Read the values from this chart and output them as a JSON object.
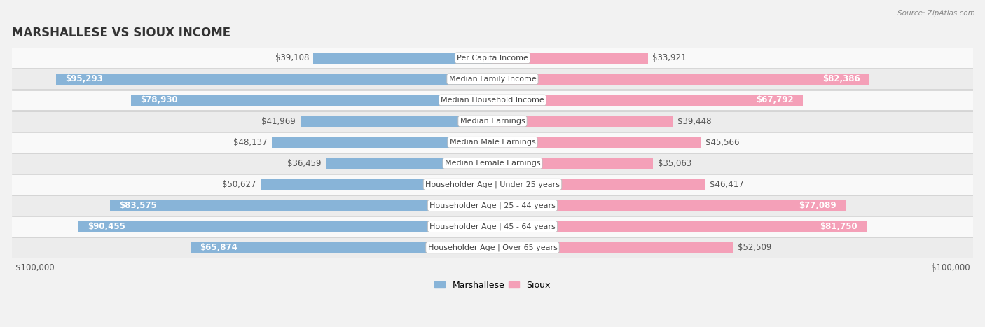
{
  "title": "MARSHALLESE VS SIOUX INCOME",
  "source": "Source: ZipAtlas.com",
  "categories": [
    "Per Capita Income",
    "Median Family Income",
    "Median Household Income",
    "Median Earnings",
    "Median Male Earnings",
    "Median Female Earnings",
    "Householder Age | Under 25 years",
    "Householder Age | 25 - 44 years",
    "Householder Age | 45 - 64 years",
    "Householder Age | Over 65 years"
  ],
  "marshallese_values": [
    39108,
    95293,
    78930,
    41969,
    48137,
    36459,
    50627,
    83575,
    90455,
    65874
  ],
  "sioux_values": [
    33921,
    82386,
    67792,
    39448,
    45566,
    35063,
    46417,
    77089,
    81750,
    52509
  ],
  "marshallese_labels": [
    "$39,108",
    "$95,293",
    "$78,930",
    "$41,969",
    "$48,137",
    "$36,459",
    "$50,627",
    "$83,575",
    "$90,455",
    "$65,874"
  ],
  "sioux_labels": [
    "$33,921",
    "$82,386",
    "$67,792",
    "$39,448",
    "$45,566",
    "$35,063",
    "$46,417",
    "$77,089",
    "$81,750",
    "$52,509"
  ],
  "max_value": 100000,
  "marshallese_color": "#88b4d8",
  "sioux_color": "#f4a0b8",
  "background_color": "#f2f2f2",
  "row_bg_even": "#f9f9f9",
  "row_bg_odd": "#ececec",
  "label_fontsize": 8.5,
  "title_fontsize": 12,
  "legend_fontsize": 9,
  "category_fontsize": 8,
  "inside_label_threshold": 60000
}
